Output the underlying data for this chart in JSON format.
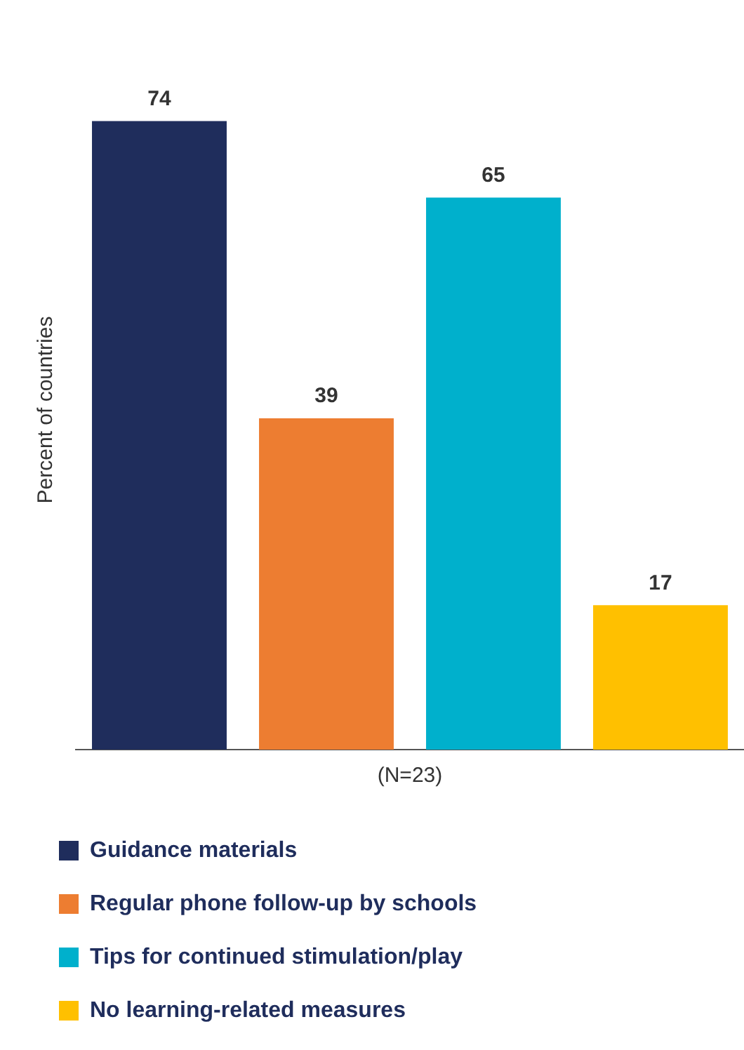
{
  "chart_data": {
    "type": "bar",
    "categories": [
      null,
      null,
      null,
      null
    ],
    "series": [
      {
        "name": "Guidance materials",
        "color": "#1f2d5c",
        "values": [
          74,
          null,
          null,
          null
        ]
      },
      {
        "name": "Regular phone follow-up by schools",
        "color": "#ed7d31",
        "values": [
          null,
          39,
          null,
          null
        ]
      },
      {
        "name": "Tips for continued stimulation/play",
        "color": "#00b0cc",
        "values": [
          null,
          null,
          65,
          null
        ]
      },
      {
        "name": "No learning-related measures",
        "color": "#ffc000",
        "values": [
          null,
          null,
          null,
          17
        ]
      }
    ],
    "stacked": true,
    "ylabel": "Percent of countries",
    "xlabel": "(N=23)",
    "data_labels": true,
    "tick_labels": false,
    "legend": "bottom left",
    "grid": false
  }
}
